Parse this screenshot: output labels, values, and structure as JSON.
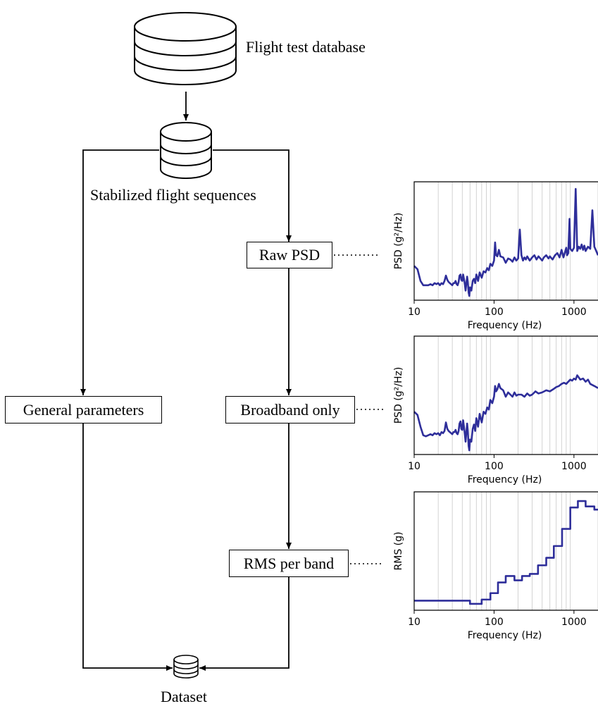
{
  "diagram": {
    "nodes": {
      "flight_db": "Flight test database",
      "stabilized": "Stabilized flight sequences",
      "raw_psd": "Raw PSD",
      "broadband": "Broadband only",
      "rms_band": "RMS per band",
      "general": "General parameters",
      "dataset": "Dataset"
    },
    "line_color": "#000000"
  },
  "chart_data": [
    {
      "type": "line",
      "xlabel": "Frequency (Hz)",
      "ylabel": "PSD (g²/Hz)",
      "x_scale": "log",
      "xlim": [
        10,
        2000
      ],
      "xticks": [
        "10",
        "100",
        "1000"
      ],
      "ylim": [
        0,
        1
      ],
      "y_ticks_labeled": false,
      "grid": "vertical minor lines",
      "color": "#2e2e9a",
      "series": [
        {
          "x": [
            10,
            11,
            12,
            13,
            14,
            15,
            16,
            17,
            18,
            19,
            20,
            21,
            22,
            23,
            24,
            25,
            26,
            27,
            28,
            29,
            30,
            31,
            32,
            33,
            34,
            35,
            36,
            37,
            38,
            39,
            40,
            41,
            42,
            43,
            44,
            45,
            46,
            47,
            48,
            49,
            50,
            52,
            54,
            56,
            58,
            60,
            63,
            66,
            70,
            74,
            78,
            82,
            86,
            90,
            95,
            100,
            103,
            106,
            110,
            115,
            120,
            130,
            140,
            150,
            160,
            170,
            180,
            190,
            200,
            210,
            220,
            230,
            240,
            250,
            260,
            280,
            300,
            320,
            340,
            360,
            380,
            400,
            420,
            450,
            480,
            500,
            540,
            580,
            620,
            660,
            700,
            740,
            780,
            800,
            820,
            850,
            880,
            900,
            950,
            1000,
            1050,
            1100,
            1150,
            1200,
            1250,
            1300,
            1350,
            1400,
            1500,
            1600,
            1700,
            1800,
            1900,
            2000
          ],
          "y": [
            0.28,
            0.25,
            0.14,
            0.1,
            0.1,
            0.1,
            0.11,
            0.1,
            0.12,
            0.11,
            0.12,
            0.1,
            0.12,
            0.11,
            0.14,
            0.19,
            0.15,
            0.13,
            0.12,
            0.11,
            0.1,
            0.12,
            0.12,
            0.14,
            0.11,
            0.1,
            0.13,
            0.19,
            0.2,
            0.15,
            0.14,
            0.2,
            0.16,
            0.11,
            0.05,
            0.12,
            0.18,
            0.13,
            0.03,
            0.0,
            0.08,
            0.05,
            0.14,
            0.16,
            0.12,
            0.2,
            0.14,
            0.22,
            0.17,
            0.23,
            0.22,
            0.26,
            0.24,
            0.3,
            0.28,
            0.33,
            0.5,
            0.38,
            0.37,
            0.43,
            0.37,
            0.36,
            0.31,
            0.35,
            0.34,
            0.32,
            0.36,
            0.33,
            0.35,
            0.62,
            0.38,
            0.33,
            0.36,
            0.34,
            0.37,
            0.33,
            0.36,
            0.38,
            0.34,
            0.37,
            0.35,
            0.33,
            0.36,
            0.38,
            0.35,
            0.37,
            0.34,
            0.38,
            0.4,
            0.36,
            0.43,
            0.36,
            0.42,
            0.45,
            0.38,
            0.4,
            0.72,
            0.44,
            0.42,
            0.45,
            1.0,
            0.42,
            0.46,
            0.44,
            0.48,
            0.43,
            0.47,
            0.42,
            0.46,
            0.44,
            0.8,
            0.46,
            0.42,
            0.38
          ]
        }
      ]
    },
    {
      "type": "line",
      "xlabel": "Frequency (Hz)",
      "ylabel": "PSD (g²/Hz)",
      "x_scale": "log",
      "xlim": [
        10,
        2000
      ],
      "xticks": [
        "10",
        "100",
        "1000"
      ],
      "ylim": [
        0,
        1
      ],
      "y_ticks_labeled": false,
      "grid": "vertical minor lines",
      "color": "#2e2e9a",
      "series": [
        {
          "x": [
            10,
            11,
            12,
            13,
            14,
            15,
            16,
            17,
            18,
            19,
            20,
            21,
            22,
            23,
            24,
            25,
            26,
            27,
            28,
            29,
            30,
            31,
            32,
            33,
            34,
            35,
            36,
            37,
            38,
            39,
            40,
            41,
            42,
            43,
            44,
            45,
            46,
            47,
            48,
            49,
            50,
            52,
            54,
            56,
            58,
            60,
            63,
            66,
            70,
            74,
            78,
            82,
            86,
            90,
            95,
            100,
            103,
            106,
            110,
            115,
            120,
            130,
            140,
            150,
            160,
            170,
            180,
            190,
            200,
            220,
            240,
            260,
            280,
            300,
            330,
            360,
            400,
            450,
            500,
            550,
            600,
            650,
            700,
            750,
            800,
            850,
            900,
            950,
            1000,
            1050,
            1100,
            1150,
            1200,
            1300,
            1400,
            1500,
            1600,
            1800,
            2000
          ],
          "y": [
            0.36,
            0.33,
            0.22,
            0.14,
            0.13,
            0.14,
            0.15,
            0.14,
            0.16,
            0.15,
            0.16,
            0.14,
            0.17,
            0.16,
            0.18,
            0.26,
            0.2,
            0.18,
            0.17,
            0.16,
            0.15,
            0.17,
            0.17,
            0.19,
            0.16,
            0.15,
            0.18,
            0.25,
            0.27,
            0.2,
            0.19,
            0.28,
            0.22,
            0.15,
            0.08,
            0.17,
            0.25,
            0.18,
            0.04,
            0.0,
            0.1,
            0.08,
            0.2,
            0.24,
            0.18,
            0.3,
            0.22,
            0.34,
            0.26,
            0.36,
            0.34,
            0.4,
            0.38,
            0.47,
            0.44,
            0.5,
            0.6,
            0.55,
            0.57,
            0.62,
            0.58,
            0.56,
            0.5,
            0.54,
            0.52,
            0.5,
            0.54,
            0.51,
            0.52,
            0.52,
            0.5,
            0.53,
            0.51,
            0.52,
            0.55,
            0.53,
            0.54,
            0.56,
            0.55,
            0.57,
            0.59,
            0.6,
            0.62,
            0.63,
            0.62,
            0.64,
            0.66,
            0.65,
            0.67,
            0.66,
            0.7,
            0.68,
            0.66,
            0.67,
            0.64,
            0.66,
            0.62,
            0.6,
            0.58
          ]
        }
      ]
    },
    {
      "type": "line",
      "xlabel": "Frequency (Hz)",
      "ylabel": "RMS (g)",
      "x_scale": "log",
      "xlim": [
        10,
        2000
      ],
      "xticks": [
        "10",
        "100",
        "1000"
      ],
      "ylim": [
        0,
        1
      ],
      "y_ticks_labeled": false,
      "grid": "vertical minor lines",
      "color": "#2e2e9a",
      "series": [
        {
          "x": [
            10,
            50,
            56,
            70,
            90,
            112,
            140,
            180,
            224,
            280,
            355,
            450,
            560,
            710,
            900,
            1120,
            1400,
            1800,
            2000
          ],
          "y": [
            0.05,
            0.02,
            0.02,
            0.06,
            0.12,
            0.22,
            0.28,
            0.24,
            0.28,
            0.3,
            0.38,
            0.45,
            0.56,
            0.72,
            0.92,
            0.98,
            0.93,
            0.9,
            0.9
          ]
        }
      ]
    }
  ]
}
